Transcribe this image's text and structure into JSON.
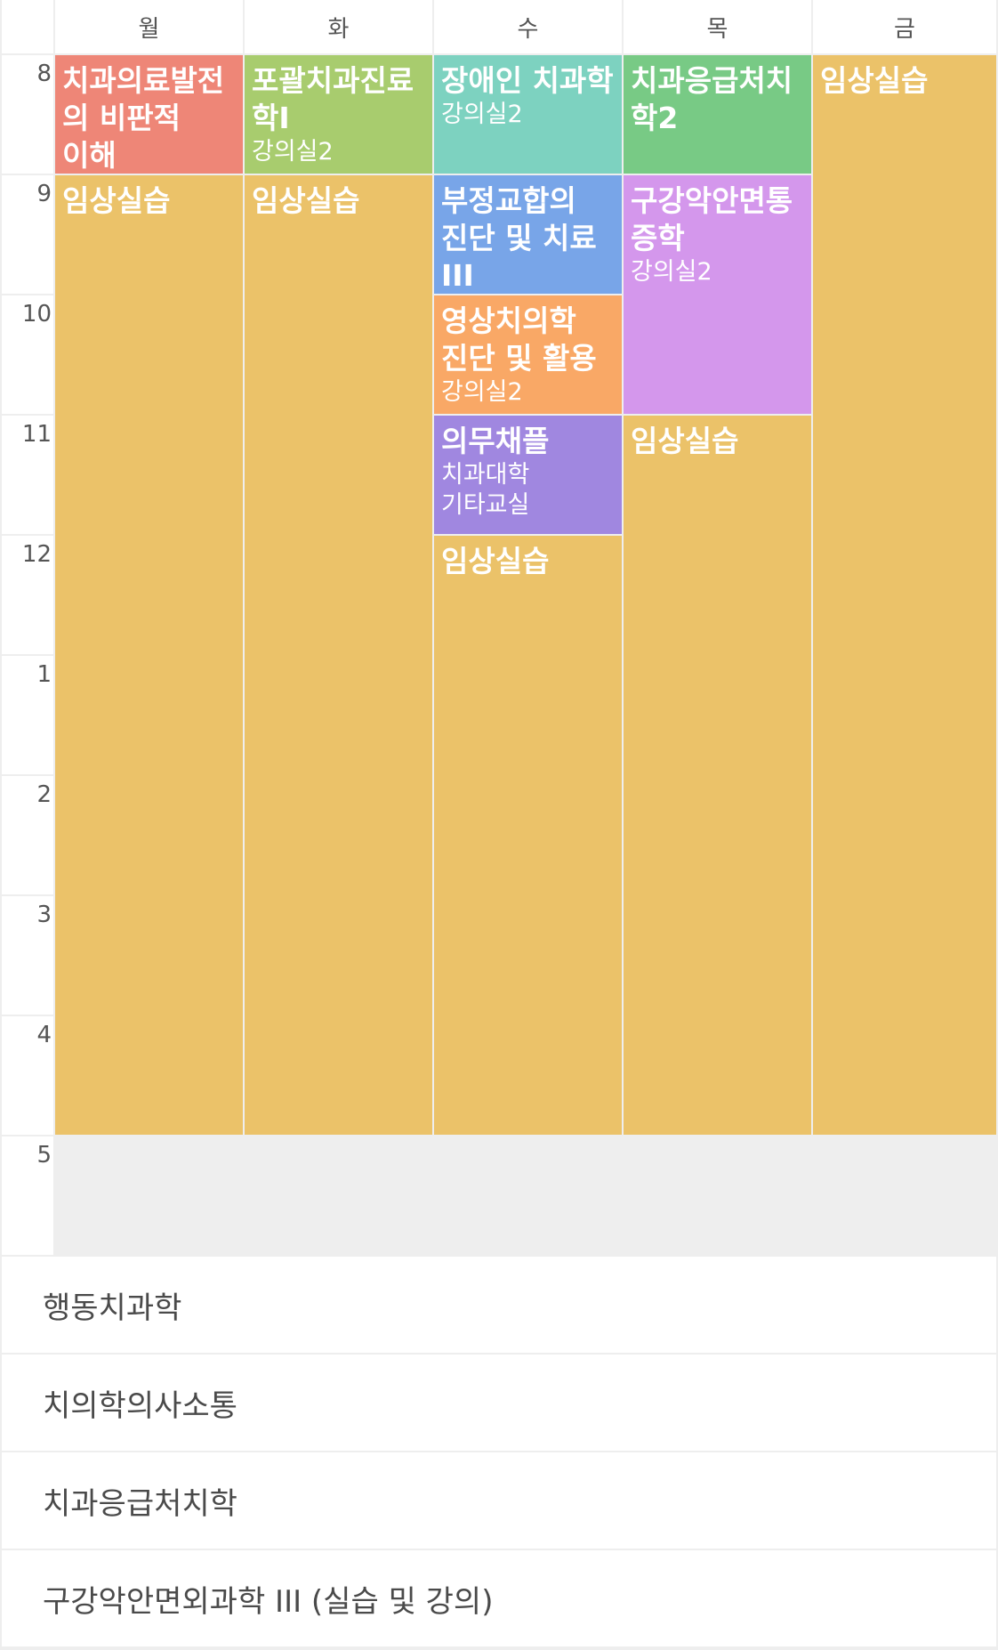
{
  "days": [
    "월",
    "화",
    "수",
    "목",
    "금"
  ],
  "hours": [
    "8",
    "9",
    "10",
    "11",
    "12",
    "1",
    "2",
    "3",
    "4",
    "5"
  ],
  "colors": {
    "red": "#EE8677",
    "green_light": "#A8CC6E",
    "teal": "#7DD2C0",
    "green": "#78CA85",
    "gold": "#EBC269",
    "blue": "#78A5E8",
    "lavender": "#D497EC",
    "orange": "#F9A866",
    "purple": "#A087E0"
  },
  "events": [
    {
      "day": 0,
      "start": 8,
      "end": 9,
      "title": "치과의료발전의 비판적 이해",
      "room": "",
      "color": "red"
    },
    {
      "day": 1,
      "start": 8,
      "end": 9,
      "title": "포괄치과진료학I",
      "room": "강의실2",
      "color": "green_light"
    },
    {
      "day": 2,
      "start": 8,
      "end": 9,
      "title": "장애인 치과학",
      "room": "강의실2",
      "color": "teal"
    },
    {
      "day": 3,
      "start": 8,
      "end": 9,
      "title": "치과응급처치학2",
      "room": "",
      "color": "green"
    },
    {
      "day": 4,
      "start": 8,
      "end": 17,
      "title": "임상실습",
      "room": "",
      "color": "gold"
    },
    {
      "day": 0,
      "start": 9,
      "end": 17,
      "title": "임상실습",
      "room": "",
      "color": "gold"
    },
    {
      "day": 1,
      "start": 9,
      "end": 17,
      "title": "임상실습",
      "room": "",
      "color": "gold"
    },
    {
      "day": 2,
      "start": 9,
      "end": 10,
      "title": "부정교합의 진단 및 치료 III",
      "room": "강의실2",
      "color": "blue"
    },
    {
      "day": 2,
      "start": 10,
      "end": 11,
      "title": "영상치의학 진단 및 활용",
      "room": "강의실2",
      "color": "orange"
    },
    {
      "day": 2,
      "start": 11,
      "end": 12,
      "title": "의무채플",
      "room": "치과대학 기타교실",
      "color": "purple"
    },
    {
      "day": 2,
      "start": 12,
      "end": 17,
      "title": "임상실습",
      "room": "",
      "color": "gold"
    },
    {
      "day": 3,
      "start": 9,
      "end": 11,
      "title": "구강악안면통증학",
      "room": "강의실2",
      "color": "lavender"
    },
    {
      "day": 3,
      "start": 11,
      "end": 17,
      "title": "임상실습",
      "room": "",
      "color": "gold"
    }
  ],
  "extra_courses": [
    "행동치과학",
    "치의학의사소통",
    "치과응급처치학",
    "구강악안면외과학 III (실습 및 강의)"
  ]
}
